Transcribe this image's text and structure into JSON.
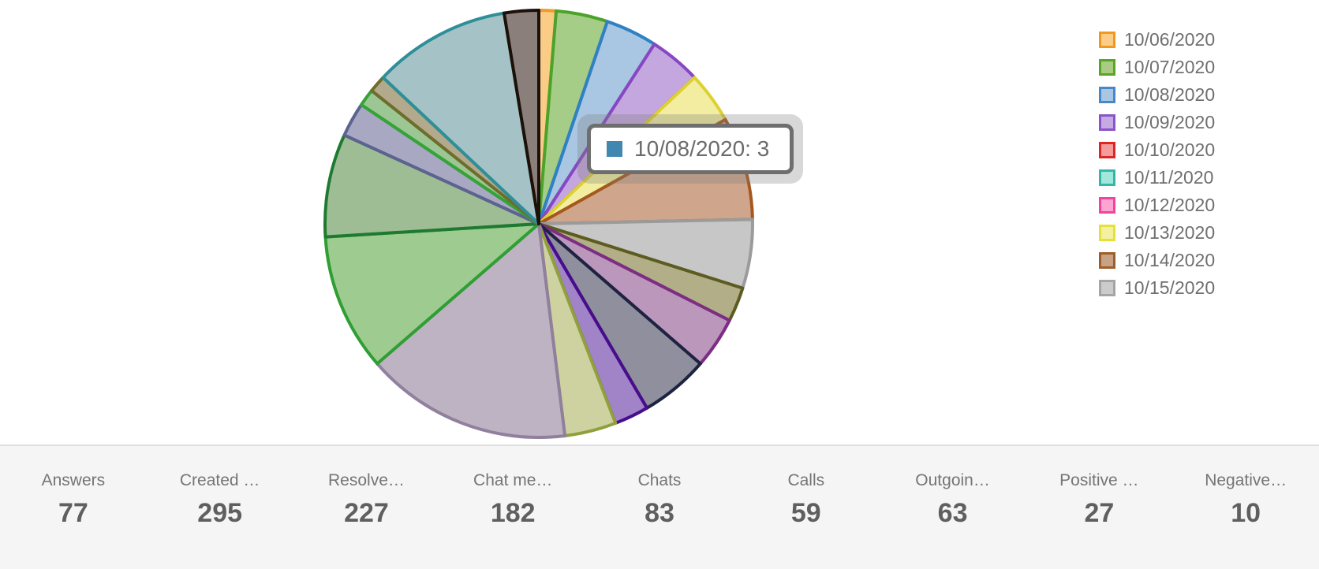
{
  "chart_data": {
    "type": "pie",
    "total": 77,
    "start_angle_deg": 0,
    "direction": "clockwise",
    "legend_position": "right",
    "legend": [
      {
        "label": "10/06/2020",
        "fill": "#fbcd89",
        "border": "#f0991e"
      },
      {
        "label": "10/07/2020",
        "fill": "#a8cc82",
        "border": "#58a528"
      },
      {
        "label": "10/08/2020",
        "fill": "#a9c7e3",
        "border": "#4788c8"
      },
      {
        "label": "10/09/2020",
        "fill": "#c5abe2",
        "border": "#8a55c9"
      },
      {
        "label": "10/10/2020",
        "fill": "#f49c9c",
        "border": "#dd2727"
      },
      {
        "label": "10/11/2020",
        "fill": "#a2e8da",
        "border": "#35b6aa"
      },
      {
        "label": "10/12/2020",
        "fill": "#fda4d0",
        "border": "#f044a0"
      },
      {
        "label": "10/13/2020",
        "fill": "#f4f0a2",
        "border": "#e6e13a"
      },
      {
        "label": "10/14/2020",
        "fill": "#c8a285",
        "border": "#9f5d2b"
      },
      {
        "label": "10/15/2020",
        "fill": "#cbcbcb",
        "border": "#a5a5a5"
      }
    ],
    "slices": [
      {
        "label": "10/06/2020",
        "value": 1,
        "fill": "#fbcc86",
        "stroke": "#ef9b24"
      },
      {
        "label": "10/07/2020",
        "value": 3,
        "fill": "#a5cd88",
        "stroke": "#4ba32a"
      },
      {
        "label": "10/08/2020",
        "value": 3,
        "fill": "#a9c6e2",
        "stroke": "#3080c4"
      },
      {
        "label": "10/09/2020",
        "value": 3,
        "fill": "#c3a7de",
        "stroke": "#8847c2"
      },
      {
        "label": "10/13/2020",
        "value": 3,
        "fill": "#f2eda0",
        "stroke": "#ddd030"
      },
      {
        "label": "10/14/2020",
        "value": 6,
        "fill": "#cfa68b",
        "stroke": "#a4581e"
      },
      {
        "label": "10/15/2020",
        "value": 4,
        "fill": "#c7c7c7",
        "stroke": "#9b9b9b"
      },
      {
        "label": "",
        "value": 2,
        "fill": "#b2af88",
        "stroke": "#5c5c20"
      },
      {
        "label": "",
        "value": 3,
        "fill": "#bb97bc",
        "stroke": "#7c2d84"
      },
      {
        "label": "",
        "value": 4,
        "fill": "#8f8f9e",
        "stroke": "#1d2340"
      },
      {
        "label": "",
        "value": 2,
        "fill": "#a183c8",
        "stroke": "#470d8c"
      },
      {
        "label": "",
        "value": 3,
        "fill": "#ced2a0",
        "stroke": "#8fa03c"
      },
      {
        "label": "",
        "value": 12,
        "fill": "#bdb3c3",
        "stroke": "#90809d"
      },
      {
        "label": "",
        "value": 8,
        "fill": "#9ecb90",
        "stroke": "#2f9e33"
      },
      {
        "label": "",
        "value": 6,
        "fill": "#9fbd95",
        "stroke": "#1e7a30"
      },
      {
        "label": "",
        "value": 2,
        "fill": "#a8a8c2",
        "stroke": "#5c6391"
      },
      {
        "label": "",
        "value": 1,
        "fill": "#9cc795",
        "stroke": "#36a336"
      },
      {
        "label": "",
        "value": 1,
        "fill": "#b3a98c",
        "stroke": "#6f6d2c"
      },
      {
        "label": "",
        "value": 8,
        "fill": "#a5c3c6",
        "stroke": "#2e8f99"
      },
      {
        "label": "",
        "value": 2,
        "fill": "#8a7f7b",
        "stroke": "#1c1008"
      }
    ],
    "tooltip": {
      "label": "10/08/2020",
      "value": 3,
      "text": "10/08/2020: 3",
      "swatch_color": "#4187b0"
    }
  },
  "stats": [
    {
      "label": "Answers",
      "value": "77"
    },
    {
      "label": "Created …",
      "value": "295"
    },
    {
      "label": "Resolve…",
      "value": "227"
    },
    {
      "label": "Chat me…",
      "value": "182"
    },
    {
      "label": "Chats",
      "value": "83"
    },
    {
      "label": "Calls",
      "value": "59"
    },
    {
      "label": "Outgoin…",
      "value": "63"
    },
    {
      "label": "Positive …",
      "value": "27"
    },
    {
      "label": "Negative…",
      "value": "10"
    }
  ]
}
